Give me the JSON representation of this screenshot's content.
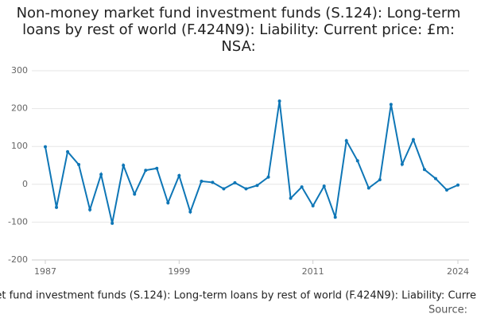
{
  "chart_data": {
    "type": "line",
    "title": "Non-money market fund investment funds (S.124): Long-term loans by rest of world (F.424N9): Liability: Current price: £m: NSA:",
    "x": [
      1987,
      1988,
      1989,
      1990,
      1991,
      1992,
      1993,
      1994,
      1995,
      1996,
      1997,
      1998,
      1999,
      2000,
      2001,
      2002,
      2003,
      2004,
      2005,
      2006,
      2007,
      2008,
      2009,
      2010,
      2011,
      2012,
      2013,
      2014,
      2015,
      2016,
      2017,
      2018,
      2019,
      2020,
      2021,
      2022,
      2023,
      2024
    ],
    "series": [
      {
        "name": "Non-money market fund investment funds (S.124): Long-term loans by rest of world (F.424N9): Liability: Current price: £m: NSA:",
        "color": "#0e76b6",
        "values": [
          99,
          -61,
          86,
          52,
          -67,
          26,
          -103,
          50,
          -26,
          37,
          42,
          -49,
          23,
          -73,
          8,
          5,
          -12,
          4,
          -12,
          -3,
          19,
          220,
          -37,
          -7,
          -57,
          -5,
          -87,
          115,
          62,
          -10,
          12,
          211,
          53,
          118,
          39,
          15,
          -15,
          -2
        ]
      }
    ],
    "xlim": [
      1987,
      2024
    ],
    "xticks": [
      1987,
      1999,
      2011,
      2024
    ],
    "ylim": [
      -200,
      300
    ],
    "yticks": [
      -200,
      -100,
      0,
      100,
      200,
      300
    ],
    "grid": true,
    "source": "Source:"
  }
}
